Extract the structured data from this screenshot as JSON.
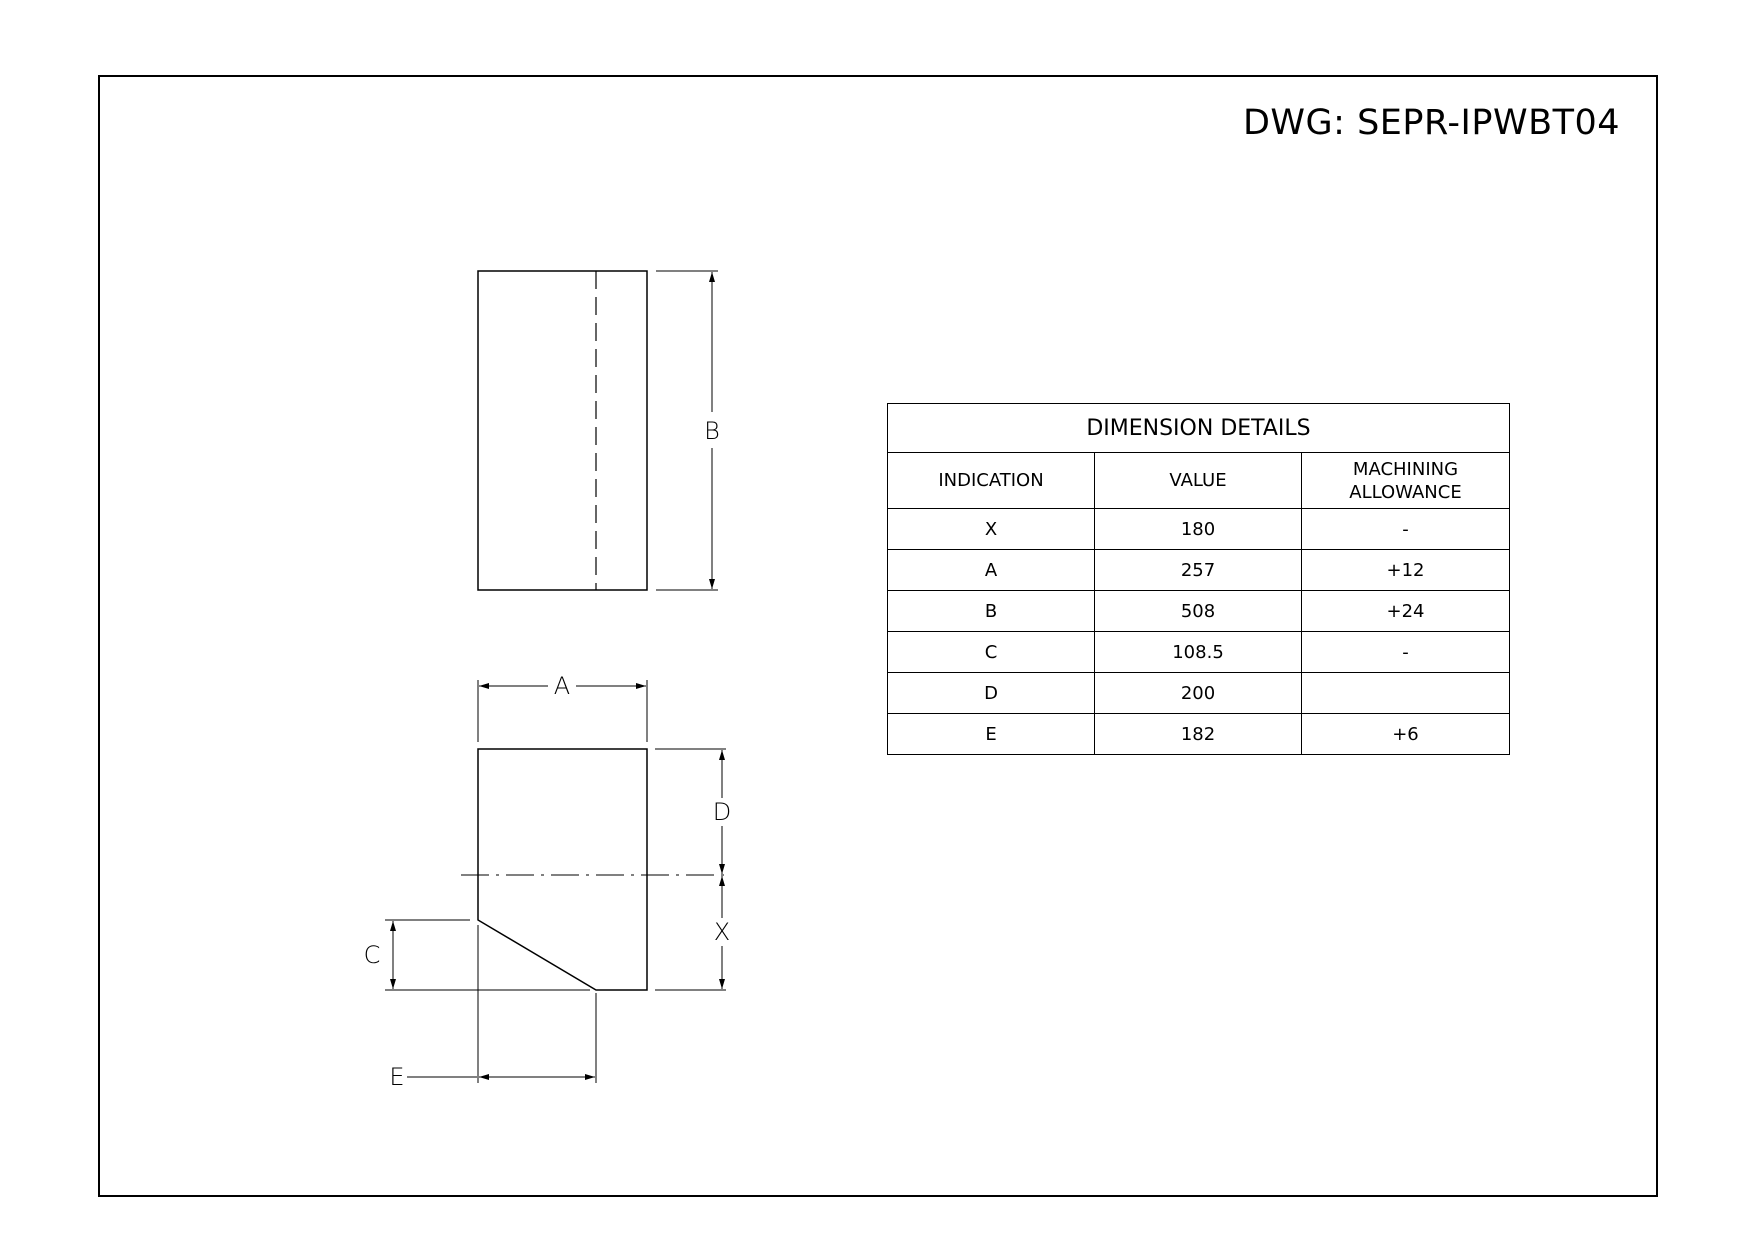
{
  "drawing_number": "DWG: SEPR-IPWBT04",
  "labels": {
    "B": "B",
    "A": "A",
    "D": "D",
    "X": "X",
    "C": "C",
    "E": "E"
  },
  "table": {
    "title": "DIMENSION DETAILS",
    "headers": [
      "INDICATION",
      "VALUE",
      "MACHINING\nALLOWANCE"
    ],
    "header_line1": [
      "INDICATION",
      "VALUE",
      "MACHINING"
    ],
    "header_line2": [
      "",
      "",
      "ALLOWANCE"
    ],
    "rows": [
      [
        "X",
        "180",
        "-"
      ],
      [
        "A",
        "257",
        "+12"
      ],
      [
        "B",
        "508",
        "+24"
      ],
      [
        "C",
        "108.5",
        "-"
      ],
      [
        "D",
        "200",
        ""
      ],
      [
        "E",
        "182",
        "+6"
      ]
    ]
  }
}
